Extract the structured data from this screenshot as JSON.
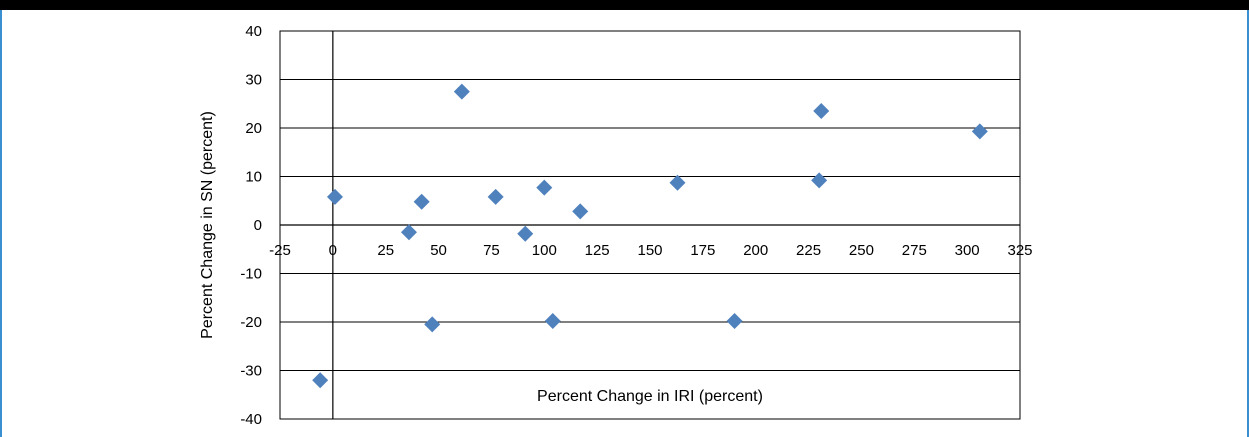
{
  "chart_data": {
    "type": "scatter",
    "title": "",
    "xlabel": "Percent Change in IRI (percent)",
    "ylabel": "Percent Change in SN (percent)",
    "xlim": [
      -25,
      325
    ],
    "ylim": [
      -40,
      40
    ],
    "xticks": [
      -25,
      0,
      25,
      50,
      75,
      100,
      125,
      150,
      175,
      200,
      225,
      250,
      275,
      300,
      325
    ],
    "yticks": [
      40,
      30,
      20,
      10,
      0,
      -10,
      -20,
      -30,
      -40
    ],
    "grid": "horizontal",
    "legend": "none",
    "marker_color": "#4f81bd",
    "marker_shape": "diamond",
    "points": [
      {
        "x": -6,
        "y": -32
      },
      {
        "x": 1,
        "y": 5.8
      },
      {
        "x": 36,
        "y": -1.5
      },
      {
        "x": 42,
        "y": 4.8
      },
      {
        "x": 47,
        "y": -20.5
      },
      {
        "x": 61,
        "y": 27.5
      },
      {
        "x": 77,
        "y": 5.8
      },
      {
        "x": 91,
        "y": -1.8
      },
      {
        "x": 100,
        "y": 7.7
      },
      {
        "x": 104,
        "y": -19.8
      },
      {
        "x": 117,
        "y": 2.8
      },
      {
        "x": 163,
        "y": 8.7
      },
      {
        "x": 190,
        "y": -19.8
      },
      {
        "x": 230,
        "y": 9.2
      },
      {
        "x": 231,
        "y": 23.5
      },
      {
        "x": 306,
        "y": 19.3
      }
    ]
  }
}
